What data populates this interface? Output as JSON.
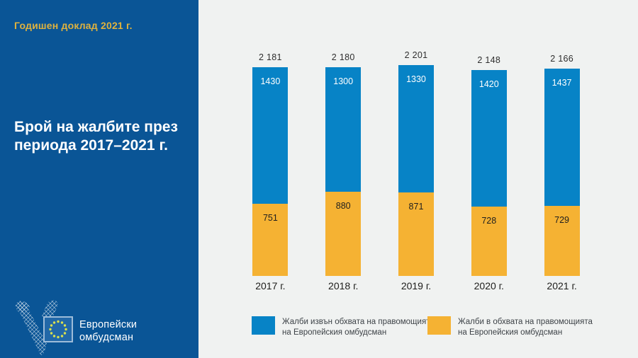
{
  "sidebar": {
    "report_title": "Годишен доклад 2021 г.",
    "heading_line1": "Брой на жалбите през",
    "heading_line2": "периода 2017–2021 г.",
    "logo": {
      "org_line1": "Европейски",
      "org_line2": "омбудсман"
    }
  },
  "chart_data": {
    "type": "bar",
    "stacked": true,
    "title": "Брой на жалбите през периода 2017–2021 г.",
    "categories": [
      "2017 г.",
      "2018 г.",
      "2019 г.",
      "2020 г.",
      "2021 г."
    ],
    "series": [
      {
        "name": "Жалби извън обхвата на правомощията на Европейския омбудсман",
        "color": "#0783c6",
        "position": "top",
        "values": [
          1430,
          1300,
          1330,
          1420,
          1437
        ]
      },
      {
        "name": "Жалби в обхвата на правомощията на Европейския омбудсман",
        "color": "#f5b233",
        "position": "bottom",
        "values": [
          751,
          880,
          871,
          728,
          729
        ]
      }
    ],
    "totals": [
      2181,
      2180,
      2201,
      2148,
      2166
    ],
    "totals_display": [
      "2 181",
      "2 180",
      "2 201",
      "2 148",
      "2 166"
    ],
    "ylim": [
      0,
      2400
    ],
    "grid": false,
    "legend_position": "bottom"
  },
  "legend": {
    "items": [
      {
        "color": "#0783c6",
        "line1": "Жалби извън обхвата на правомощията",
        "line2": "на Европейския омбудсман"
      },
      {
        "color": "#f5b233",
        "line1": "Жалби в обхвата на правомощията",
        "line2": "на Европейския омбудсман"
      }
    ]
  },
  "colors": {
    "sidebar_bg": "#0a5596",
    "main_bg": "#f0f2f1",
    "accent_gold": "#dfb23e",
    "bar_blue": "#0783c6",
    "bar_orange": "#f5b233",
    "eu_flag_blue": "#2268a8",
    "eu_star_yellow": "#d9e04f"
  }
}
